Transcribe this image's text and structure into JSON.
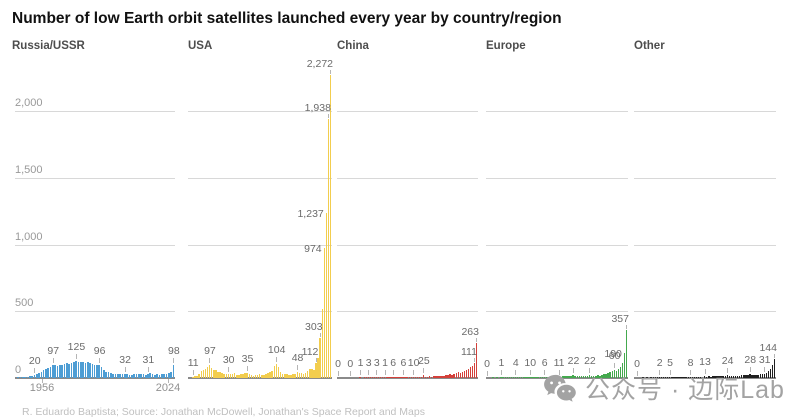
{
  "title": "Number of low Earth orbit satellites launched every year by country/region",
  "credit": "R. Eduardo Baptista; Source: Jonathan McDowell, Jonathan's Space Report and Maps",
  "watermark": {
    "icon": "wechat-icon",
    "text": "公众号 · 边际Lab",
    "color": "#a3a3a3"
  },
  "chart_data": {
    "type": "bar",
    "layout": "small-multiples",
    "grid": "horizontal",
    "x_start_year": 1956,
    "x_end_year": 2024,
    "x_axis_labels": [
      "1956",
      "2024"
    ],
    "ylim": [
      0,
      2400
    ],
    "y_ticks": [
      {
        "value": 2000,
        "label": "2,000"
      },
      {
        "value": 1500,
        "label": "1,500"
      },
      {
        "value": 1000,
        "label": "1,000"
      },
      {
        "value": 500,
        "label": "500"
      },
      {
        "value": 0,
        "label": "0"
      }
    ],
    "panels": [
      {
        "name": "Russia/USSR",
        "color": "#4d9dd4",
        "values": [
          0,
          2,
          1,
          3,
          5,
          8,
          12,
          16,
          20,
          30,
          38,
          48,
          58,
          66,
          74,
          84,
          97,
          94,
          90,
          94,
          100,
          106,
          110,
          108,
          114,
          118,
          125,
          121,
          123,
          119,
          116,
          117,
          113,
          106,
          101,
          99,
          96,
          82,
          62,
          48,
          42,
          38,
          33,
          30,
          32,
          28,
          30,
          32,
          28,
          26,
          24,
          27,
          30,
          28,
          30,
          28,
          26,
          31,
          34,
          28,
          25,
          29,
          26,
          27,
          29,
          33,
          38,
          48,
          98
        ],
        "labels": [
          {
            "year": 1964,
            "text": "20",
            "placement": "above"
          },
          {
            "year": 1972,
            "text": "97",
            "placement": "above"
          },
          {
            "year": 1982,
            "text": "125",
            "placement": "above"
          },
          {
            "year": 1992,
            "text": "96",
            "placement": "above"
          },
          {
            "year": 2003,
            "text": "32",
            "placement": "above"
          },
          {
            "year": 2013,
            "text": "31",
            "placement": "above"
          },
          {
            "year": 2024,
            "text": "98",
            "placement": "above"
          }
        ]
      },
      {
        "name": "USA",
        "color": "#f2cd4e",
        "values": [
          0,
          0,
          11,
          13,
          16,
          30,
          52,
          60,
          66,
          80,
          97,
          78,
          62,
          58,
          48,
          42,
          36,
          32,
          28,
          30,
          33,
          28,
          34,
          24,
          26,
          30,
          27,
          36,
          35,
          32,
          22,
          18,
          20,
          24,
          30,
          26,
          24,
          32,
          36,
          42,
          55,
          88,
          104,
          82,
          42,
          32,
          28,
          30,
          22,
          26,
          30,
          28,
          48,
          38,
          34,
          30,
          38,
          55,
          70,
          65,
          58,
          112,
          150,
          303,
          520,
          974,
          1237,
          1938,
          2272
        ],
        "labels": [
          {
            "year": 1958,
            "text": "11",
            "placement": "above"
          },
          {
            "year": 1966,
            "text": "97",
            "placement": "above"
          },
          {
            "year": 1975,
            "text": "30",
            "placement": "above"
          },
          {
            "year": 1984,
            "text": "35",
            "placement": "above"
          },
          {
            "year": 1998,
            "text": "104",
            "placement": "above"
          },
          {
            "year": 2008,
            "text": "48",
            "placement": "above"
          },
          {
            "year": 2017,
            "text": "112",
            "placement": "topleft"
          },
          {
            "year": 2019,
            "text": "303",
            "placement": "topleft"
          },
          {
            "year": 2021,
            "text": "974",
            "placement": "left"
          },
          {
            "year": 2022,
            "text": "1,237",
            "placement": "left"
          },
          {
            "year": 2023,
            "text": "1,938",
            "placement": "topleft"
          },
          {
            "year": 2024,
            "text": "2,272",
            "placement": "topleft"
          }
        ]
      },
      {
        "name": "China",
        "color": "#d4403a",
        "values": [
          0,
          0,
          0,
          0,
          0,
          0,
          0,
          0,
          0,
          0,
          0,
          1,
          0,
          1,
          2,
          3,
          2,
          1,
          2,
          3,
          2,
          3,
          2,
          1,
          2,
          3,
          4,
          6,
          4,
          3,
          5,
          4,
          6,
          5,
          6,
          4,
          7,
          10,
          6,
          5,
          8,
          6,
          25,
          10,
          8,
          12,
          10,
          14,
          12,
          16,
          14,
          18,
          16,
          20,
          24,
          28,
          22,
          30,
          35,
          42,
          38,
          48,
          55,
          60,
          70,
          80,
          90,
          111,
          263
        ],
        "labels": [
          {
            "year": 1956,
            "text": "0",
            "placement": "above"
          },
          {
            "year": 1962,
            "text": "0",
            "placement": "above"
          },
          {
            "year": 1967,
            "text": "1",
            "placement": "above"
          },
          {
            "year": 1971,
            "text": "3",
            "placement": "above"
          },
          {
            "year": 1975,
            "text": "3",
            "placement": "above"
          },
          {
            "year": 1979,
            "text": "1",
            "placement": "above"
          },
          {
            "year": 1983,
            "text": "6",
            "placement": "above"
          },
          {
            "year": 1988,
            "text": "6",
            "placement": "above"
          },
          {
            "year": 1993,
            "text": "10",
            "placement": "above"
          },
          {
            "year": 1998,
            "text": "25",
            "placement": "above"
          },
          {
            "year": 2023,
            "text": "111",
            "placement": "topleft"
          },
          {
            "year": 2024,
            "text": "263",
            "placement": "topleft"
          }
        ]
      },
      {
        "name": "Europe",
        "color": "#44a94e",
        "values": [
          0,
          0,
          0,
          1,
          0,
          1,
          0,
          1,
          2,
          1,
          2,
          3,
          2,
          3,
          4,
          3,
          4,
          5,
          4,
          6,
          5,
          10,
          6,
          5,
          7,
          6,
          8,
          7,
          6,
          8,
          7,
          9,
          8,
          10,
          9,
          11,
          10,
          12,
          14,
          12,
          16,
          18,
          22,
          16,
          14,
          12,
          15,
          13,
          16,
          14,
          22,
          16,
          18,
          15,
          20,
          18,
          24,
          28,
          32,
          40,
          48,
          55,
          60,
          50,
          65,
          80,
          110,
          190,
          357
        ],
        "labels": [
          {
            "year": 1956,
            "text": "0",
            "placement": "above"
          },
          {
            "year": 1963,
            "text": "1",
            "placement": "above"
          },
          {
            "year": 1970,
            "text": "4",
            "placement": "above"
          },
          {
            "year": 1977,
            "text": "10",
            "placement": "above"
          },
          {
            "year": 1984,
            "text": "6",
            "placement": "above"
          },
          {
            "year": 1991,
            "text": "11",
            "placement": "above"
          },
          {
            "year": 1998,
            "text": "22",
            "placement": "above"
          },
          {
            "year": 2006,
            "text": "22",
            "placement": "above"
          },
          {
            "year": 2018,
            "text": "60",
            "placement": "above"
          },
          {
            "year": 2023,
            "text": "190",
            "placement": "left"
          },
          {
            "year": 2024,
            "text": "357",
            "placement": "topleft"
          }
        ]
      },
      {
        "name": "Other",
        "color": "#1f1f1f",
        "values": [
          0,
          0,
          0,
          0,
          1,
          0,
          1,
          0,
          1,
          1,
          2,
          1,
          2,
          1,
          2,
          3,
          2,
          5,
          3,
          2,
          4,
          3,
          5,
          4,
          6,
          5,
          7,
          8,
          6,
          7,
          8,
          9,
          8,
          10,
          13,
          10,
          12,
          11,
          13,
          12,
          15,
          14,
          16,
          15,
          18,
          24,
          16,
          15,
          17,
          16,
          18,
          17,
          20,
          19,
          22,
          21,
          28,
          24,
          22,
          26,
          25,
          28,
          29,
          31,
          38,
          55,
          70,
          95,
          144
        ],
        "labels": [
          {
            "year": 1957,
            "text": "0",
            "placement": "above"
          },
          {
            "year": 1968,
            "text": "2",
            "placement": "above"
          },
          {
            "year": 1973,
            "text": "5",
            "placement": "above"
          },
          {
            "year": 1983,
            "text": "8",
            "placement": "above"
          },
          {
            "year": 1990,
            "text": "13",
            "placement": "above"
          },
          {
            "year": 2001,
            "text": "24",
            "placement": "above"
          },
          {
            "year": 2012,
            "text": "28",
            "placement": "above"
          },
          {
            "year": 2019,
            "text": "31",
            "placement": "above"
          },
          {
            "year": 2024,
            "text": "144",
            "placement": "topleft"
          }
        ]
      }
    ]
  }
}
